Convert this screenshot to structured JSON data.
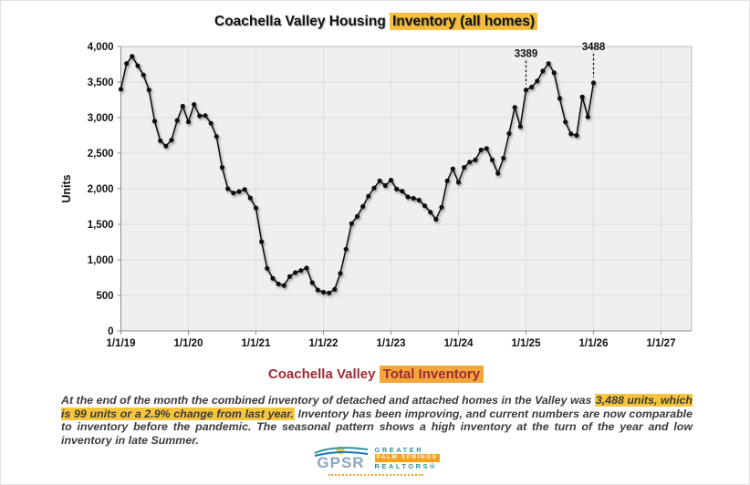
{
  "title": {
    "plain": "Coachella Valley Housing ",
    "highlight": "Inventory (all homes)"
  },
  "chart_data": {
    "type": "line",
    "title": "Coachella Valley Housing Inventory (all homes)",
    "xlabel": "",
    "ylabel": "Units",
    "ylim": [
      0,
      4000
    ],
    "ytick_interval": 500,
    "ytick_labels": [
      "0",
      "500",
      "1,000",
      "1,500",
      "2,000",
      "2,500",
      "3,000",
      "3,500",
      "4,000"
    ],
    "x_tick_labels": [
      "1/1/19",
      "1/1/20",
      "1/1/21",
      "1/1/22",
      "1/1/23",
      "1/1/24",
      "1/1/25",
      "1/1/26",
      "1/1/27"
    ],
    "grid": true,
    "legend": "none",
    "frequency": "monthly",
    "start_month": "Jan 2019",
    "end_month": "Jan 2026",
    "series": [
      {
        "name": "Total Inventory (all homes)",
        "color": "#111111",
        "values": [
          3400,
          3760,
          3860,
          3730,
          3600,
          3390,
          2950,
          2675,
          2600,
          2685,
          2960,
          3160,
          2940,
          3185,
          3025,
          3030,
          2920,
          2735,
          2300,
          2000,
          1940,
          1960,
          1990,
          1870,
          1730,
          1255,
          880,
          740,
          660,
          640,
          765,
          820,
          850,
          885,
          680,
          575,
          545,
          535,
          585,
          810,
          1150,
          1510,
          1610,
          1750,
          1895,
          2010,
          2110,
          2045,
          2120,
          1995,
          1965,
          1885,
          1865,
          1840,
          1760,
          1670,
          1570,
          1740,
          2110,
          2280,
          2090,
          2300,
          2375,
          2405,
          2545,
          2565,
          2405,
          2215,
          2430,
          2777,
          3145,
          2875,
          3389,
          3430,
          3515,
          3655,
          3760,
          3630,
          3270,
          2940,
          2770,
          2750,
          3290,
          3010,
          3488
        ]
      }
    ],
    "annotations": [
      {
        "label": "3389",
        "index": 72,
        "month": "Jan 2025"
      },
      {
        "label": "3488",
        "index": 84,
        "month": "Jan 2026"
      }
    ]
  },
  "subtitle": {
    "plain": "Coachella Valley ",
    "highlight": "Total Inventory"
  },
  "paragraph": {
    "seg1": "At the end of the month the combined inventory of detached and attached homes in the Valley was ",
    "seg2_highlight": "3,488 units, which is 99 units or a 2.9% change from last year.",
    "seg3": " Inventory has been improving, and current numbers are now comparable to inventory before the pandemic. The seasonal pattern shows a high inventory at the turn of the year and low inventory in late Summer."
  },
  "logo": {
    "acronym": "GPSR",
    "line1": "GREATER",
    "line2": "PALM SPRINGS",
    "line3": "REALTORS®"
  },
  "colors": {
    "highlight_yellow": "#F6BE3C",
    "subtitle_red": "#9E2B33",
    "subtitle_highlight_orange": "#F2A73B",
    "paragraph_highlight": "#F6C53E",
    "series_line": "#111111",
    "plot_background": "#EFEFEF",
    "gridline": "#DEDEDE",
    "logo_blue": "#8CA5C2",
    "logo_teal": "#2E9598",
    "logo_orange": "#F7A11B",
    "sun_yellow": "#F8CF3F"
  }
}
